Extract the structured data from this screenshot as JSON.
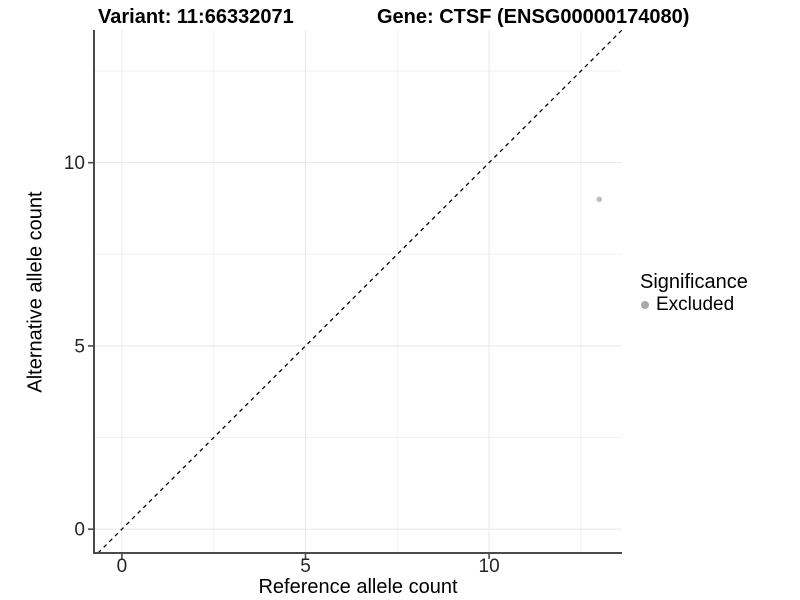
{
  "header": {
    "variant_title": "Variant: 11:66332071",
    "gene_title": "Gene: CTSF (ENSG00000174080)"
  },
  "chart_data": {
    "type": "scatter",
    "title": "Variant: 11:66332071    Gene: CTSF (ENSG00000174080)",
    "xlabel": "Reference allele count",
    "ylabel": "Alternative allele count",
    "xlim": [
      -0.76,
      13.62
    ],
    "ylim": [
      -0.65,
      13.62
    ],
    "x_ticks": [
      0,
      5,
      10
    ],
    "y_ticks": [
      0,
      5,
      10
    ],
    "x_minor_ticks": [
      2.5,
      7.5,
      12.5
    ],
    "y_minor_ticks": [
      2.5,
      7.5,
      12.5
    ],
    "grid": "major+minor",
    "identity_line": {
      "equation": "y = x",
      "style": "dashed",
      "color": "#000000"
    },
    "series": [
      {
        "name": "Excluded",
        "color": "#bebebe",
        "point_radius": 2.8,
        "points": [
          {
            "x": 13,
            "y": 9
          }
        ]
      }
    ],
    "legend": {
      "title": "Significance",
      "position": "right",
      "items": [
        {
          "label": "Excluded",
          "color": "#a9a9a9"
        }
      ]
    },
    "colors": {
      "axis_line": "#4a4a4a",
      "grid_major": "#e8e8e8",
      "grid_minor": "#f1f1f1",
      "tick_text": "#262626",
      "title_text": "#000000",
      "background": "#ffffff"
    }
  }
}
